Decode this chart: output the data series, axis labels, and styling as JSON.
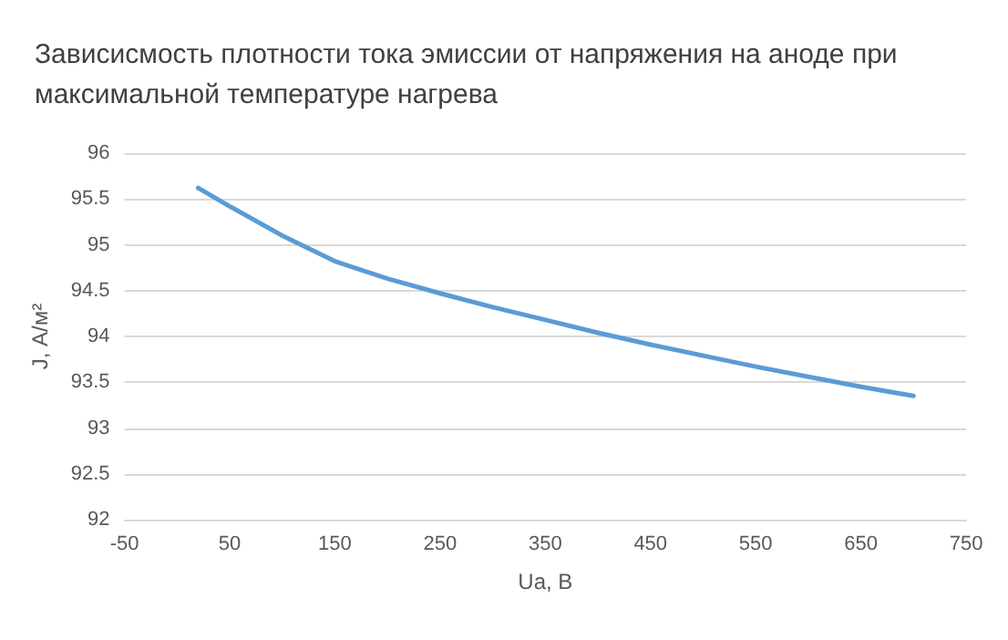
{
  "chart_data": {
    "type": "line",
    "title": "Зависисмость плотности тока эмиссии от напряжения на аноде при максимальной температуре нагрева",
    "xlabel": "Ua, В",
    "ylabel": "J, А/м²",
    "x": [
      20,
      50,
      100,
      150,
      200,
      250,
      300,
      350,
      400,
      450,
      500,
      550,
      600,
      650,
      700
    ],
    "series": [
      {
        "color": "#5b9bd5",
        "values": [
          95.62,
          95.42,
          95.1,
          94.82,
          94.63,
          94.47,
          94.32,
          94.18,
          94.04,
          93.91,
          93.79,
          93.67,
          93.56,
          93.45,
          93.35
        ]
      }
    ],
    "xlim": [
      -50,
      750
    ],
    "xticks": [
      -50,
      50,
      150,
      250,
      350,
      450,
      550,
      650,
      750
    ],
    "ylim": [
      92,
      96
    ],
    "yticks": [
      92,
      92.5,
      93,
      93.5,
      94,
      94.5,
      95,
      95.5,
      96
    ],
    "grid": "y",
    "marker": "none",
    "line_style": "solid"
  }
}
